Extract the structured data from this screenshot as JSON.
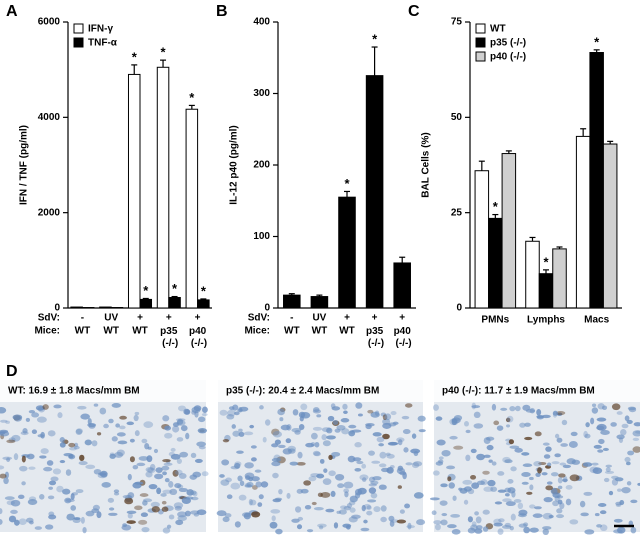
{
  "chart_data": [
    {
      "type": "bar",
      "panel": "A",
      "y_label": "IFN / TNF (pg/ml)",
      "treatment_label": "SdV:",
      "category_label": "Mice:",
      "treatments": [
        "-",
        "UV",
        "+",
        "+",
        "+"
      ],
      "categories": [
        "WT",
        "WT",
        "WT",
        "p35 (-/-)",
        "p40 (-/-)"
      ],
      "ylim": [
        0,
        6000
      ],
      "yticks": [
        0,
        2000,
        4000,
        6000
      ],
      "legend": "top-left",
      "series": [
        {
          "name": "IFN-γ",
          "color": "#ffffff",
          "values": [
            20,
            20,
            4900,
            5050,
            4170
          ],
          "errors": [
            0,
            0,
            200,
            150,
            80
          ],
          "stars": [
            null,
            null,
            "*",
            "*",
            "*"
          ]
        },
        {
          "name": "TNF-α",
          "color": "#000000",
          "values": [
            10,
            10,
            180,
            220,
            170
          ],
          "errors": [
            0,
            0,
            20,
            20,
            20
          ],
          "stars": [
            null,
            null,
            "*",
            "*",
            "*"
          ]
        }
      ]
    },
    {
      "type": "bar",
      "panel": "B",
      "y_label": "IL-12 p40 (pg/ml)",
      "treatment_label": "SdV:",
      "category_label": "Mice:",
      "treatments": [
        "-",
        "UV",
        "+",
        "+",
        "+"
      ],
      "categories": [
        "WT",
        "WT",
        "WT",
        "p35 (-/-)",
        "p40 (-/-)"
      ],
      "ylim": [
        0,
        400
      ],
      "yticks": [
        0,
        100,
        200,
        300,
        400
      ],
      "series": [
        {
          "color": "#000000",
          "values": [
            18,
            16,
            155,
            325,
            63
          ],
          "errors": [
            2,
            2,
            8,
            40,
            8
          ],
          "stars": [
            null,
            null,
            "*",
            "*",
            null
          ]
        }
      ]
    },
    {
      "type": "bar",
      "panel": "C",
      "y_label": "BAL Cells (%)",
      "categories": [
        "PMNs",
        "Lymphs",
        "Macs"
      ],
      "ylim": [
        0,
        75
      ],
      "yticks": [
        0,
        25,
        50,
        75
      ],
      "legend": "top-left",
      "series": [
        {
          "name": "WT",
          "color": "#ffffff",
          "values": [
            36,
            17.5,
            45
          ],
          "errors": [
            2.5,
            1,
            2
          ],
          "stars": [
            null,
            null,
            null
          ]
        },
        {
          "name": "p35 (-/-)",
          "color": "#000000",
          "values": [
            23.5,
            9,
            67
          ],
          "errors": [
            1,
            1,
            0.7
          ],
          "stars": [
            "*",
            "*",
            "*"
          ]
        },
        {
          "name": "p40 (-/-)",
          "color": "#d0d0d0",
          "values": [
            40.5,
            15.5,
            43
          ],
          "errors": [
            0.7,
            0.5,
            0.7
          ],
          "stars": [
            null,
            null,
            null
          ]
        }
      ]
    }
  ],
  "panel_d": {
    "label": "D",
    "images": [
      {
        "caption": "WT: 16.9 ± 1.8 Macs/mm BM"
      },
      {
        "caption": "p35 (-/-): 20.4 ± 2.4 Macs/mm BM"
      },
      {
        "caption": "p40 (-/-): 11.7 ± 1.9 Macs/mm BM"
      }
    ]
  }
}
